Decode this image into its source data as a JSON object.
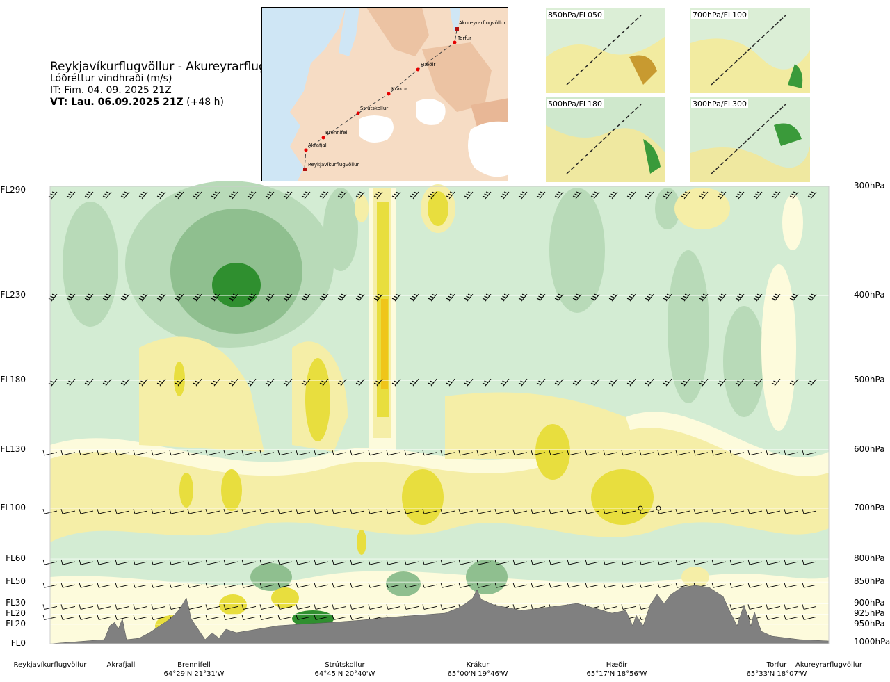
{
  "header": {
    "title": "Reykjavíkurflugvöllur - Akureyrarflugvöllur",
    "variable": "Lóðréttur vindhraði (m/s)",
    "it": "IT: Fim. 04. 09. 2025 21Z",
    "vt_bold": "VT: Lau. 06.09.2025 21Z",
    "vt_lead": "(+48 h)"
  },
  "map": {
    "stations": [
      "Akureyrarflugvöllur",
      "Torfur",
      "Hæðir",
      "Krákur",
      "Strútskollur",
      "Brennifell",
      "Akrafjall",
      "Reykjavíkurflugvöllur"
    ]
  },
  "mini_maps": [
    {
      "label": "850hPa/FL050"
    },
    {
      "label": "700hPa/FL100"
    },
    {
      "label": "500hPa/FL180"
    },
    {
      "label": "300hPa/FL300"
    }
  ],
  "colors": {
    "strong_down": "#2f8f2f",
    "mid_down": "#8fbf8f",
    "weak_down": "#b8dab8",
    "neutral_down": "#d3ecd3",
    "near_zero": "#f4fbf0",
    "weak_up": "#fdfbdc",
    "mid_up": "#f5eea7",
    "strong_up": "#e8de3e",
    "max_up": "#efc51a",
    "terrain": "#808080"
  },
  "chart_data": {
    "type": "heatmap",
    "title": "Lóðréttur vindhraði (m/s)",
    "y_left_ticks": [
      "FL290",
      "FL230",
      "FL180",
      "FL130",
      "FL100",
      "FL60",
      "FL50",
      "FL30",
      "FL20",
      "FL20",
      "FL0"
    ],
    "y_right_ticks": [
      "300hPa",
      "400hPa",
      "500hPa",
      "600hPa",
      "700hPa",
      "800hPa",
      "850hPa",
      "900hPa",
      "925hPa",
      "950hPa",
      "1000hPa"
    ],
    "pressure_levels_hpa": [
      300,
      400,
      500,
      600,
      700,
      800,
      850,
      900,
      925,
      950,
      1000
    ],
    "x_locations": [
      {
        "name": "Reykjavíkurflugvöllur",
        "coord": ""
      },
      {
        "name": "Akrafjall",
        "coord": ""
      },
      {
        "name": "Brennifell",
        "coord": "64°29'N 21°31'W"
      },
      {
        "name": "Strútskollur",
        "coord": "64°45'N 20°40'W"
      },
      {
        "name": "Krákur",
        "coord": "65°00'N 19°46'W"
      },
      {
        "name": "Hæðir",
        "coord": "65°17'N 18°56'W"
      },
      {
        "name": "Torfur",
        "coord": "65°33'N 18°07'W"
      },
      {
        "name": "Akureyrarflugvöllur",
        "coord": ""
      }
    ],
    "barb_levels_hpa": [
      300,
      400,
      500,
      600,
      700,
      800,
      850,
      900,
      925
    ]
  }
}
